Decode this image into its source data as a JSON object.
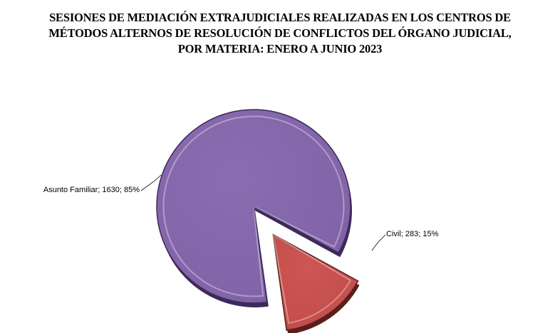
{
  "chart_data": {
    "type": "pie",
    "title_lines": [
      "SESIONES DE MEDIACIÓN EXTRAJUDICIALES REALIZADAS EN LOS CENTROS DE",
      "MÉTODOS ALTERNOS DE RESOLUCIÓN DE CONFLICTOS DEL ÓRGANO JUDICIAL,",
      "POR MATERIA: ENERO A JUNIO 2023"
    ],
    "slices": [
      {
        "label": "Asunto Familiar",
        "value": 1630,
        "percent": "85%",
        "data_label": "Asunto Familiar; 1630; 85%",
        "color": "#8467a9",
        "stroke": "#3c2a5a"
      },
      {
        "label": "Civil",
        "value": 283,
        "percent": "15%",
        "data_label": "Civil; 283; 15%",
        "color": "#c8524f",
        "stroke": "#5a1f1d"
      }
    ],
    "legend": "none",
    "style": "3d-exploded"
  }
}
